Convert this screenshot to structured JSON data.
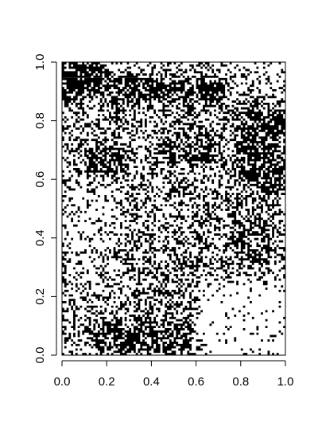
{
  "chart_data": {
    "type": "heatmap",
    "description_of_values": "binary raster (1 = black pixel, 0 = white) of a dithered photograph of a face",
    "title": "",
    "xlabel": "",
    "ylabel": "",
    "xlim": [
      0.0,
      1.0
    ],
    "ylim": [
      0.0,
      1.0
    ],
    "x_ticks": [
      "0.0",
      "0.2",
      "0.4",
      "0.6",
      "0.8",
      "1.0"
    ],
    "y_ticks": [
      "0.0",
      "0.2",
      "0.4",
      "0.6",
      "0.8",
      "1.0"
    ],
    "grid": false,
    "legend": "none",
    "raster_resolution": [
      100,
      130
    ],
    "colors": {
      "on": "#000000",
      "off": "#ffffff",
      "axis": "#000000",
      "background": "#ffffff"
    },
    "density_regions": [
      {
        "region": "hair-top-left",
        "x": [
          0.0,
          0.2
        ],
        "y": [
          0.88,
          1.0
        ],
        "black_fraction": 0.85
      },
      {
        "region": "hair-top-band",
        "x": [
          0.2,
          0.75
        ],
        "y": [
          0.82,
          0.95
        ],
        "black_fraction": 0.7
      },
      {
        "region": "hair-right-side",
        "x": [
          0.78,
          1.0
        ],
        "y": [
          0.55,
          0.85
        ],
        "black_fraction": 0.7
      },
      {
        "region": "eye-left",
        "x": [
          0.1,
          0.3
        ],
        "y": [
          0.6,
          0.72
        ],
        "black_fraction": 0.65
      },
      {
        "region": "eye-right",
        "x": [
          0.45,
          0.7
        ],
        "y": [
          0.65,
          0.78
        ],
        "black_fraction": 0.6
      },
      {
        "region": "top-right-corner",
        "x": [
          0.75,
          1.0
        ],
        "y": [
          0.9,
          1.0
        ],
        "black_fraction": 0.25
      },
      {
        "region": "forehead",
        "x": [
          0.25,
          0.75
        ],
        "y": [
          0.78,
          0.86
        ],
        "black_fraction": 0.4
      },
      {
        "region": "cheek-left",
        "x": [
          0.0,
          0.25
        ],
        "y": [
          0.3,
          0.6
        ],
        "black_fraction": 0.2
      },
      {
        "region": "nose-cheek",
        "x": [
          0.25,
          0.75
        ],
        "y": [
          0.3,
          0.65
        ],
        "black_fraction": 0.38
      },
      {
        "region": "face-right",
        "x": [
          0.75,
          0.95
        ],
        "y": [
          0.3,
          0.55
        ],
        "black_fraction": 0.55
      },
      {
        "region": "chin-neck",
        "x": [
          0.3,
          0.7
        ],
        "y": [
          0.15,
          0.3
        ],
        "black_fraction": 0.45
      },
      {
        "region": "shirt-left",
        "x": [
          0.0,
          0.3
        ],
        "y": [
          0.0,
          0.2
        ],
        "black_fraction": 0.3
      },
      {
        "region": "shirt-dark-center",
        "x": [
          0.15,
          0.6
        ],
        "y": [
          0.0,
          0.12
        ],
        "black_fraction": 0.7
      },
      {
        "region": "shirt-bright-right",
        "x": [
          0.6,
          1.0
        ],
        "y": [
          0.0,
          0.25
        ],
        "black_fraction": 0.06
      }
    ],
    "base_black_fraction": 0.3
  }
}
